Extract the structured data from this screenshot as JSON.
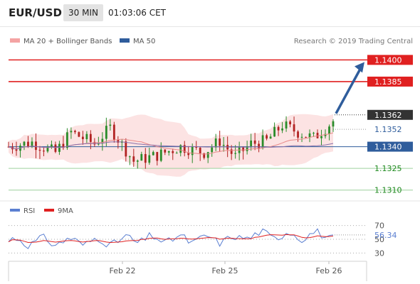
{
  "header": {
    "symbol": "EUR/USD",
    "timeframe": "30 MIN",
    "time": "01:03:06 CET"
  },
  "legend": {
    "bollinger_label": "MA 20 + Bollinger Bands",
    "bollinger_color": "#f4a3a3",
    "ma50_label": "MA 50",
    "ma50_color": "#2f5d9c",
    "source": "Research © 2019 Trading Central"
  },
  "rsi_legend": {
    "rsi_label": "RSI",
    "rsi_color": "#5b7fd1",
    "ma9_label": "9MA",
    "ma9_color": "#e02020"
  },
  "chart_data": {
    "type": "candlestick",
    "y_range": [
      1.1302,
      1.141
    ],
    "x_tick_labels": [
      "Feb 22",
      "Feb 25",
      "Feb 26"
    ],
    "levels": [
      {
        "label": "1.1400",
        "value": 1.14,
        "kind": "resistance"
      },
      {
        "label": "1.1385",
        "value": 1.1385,
        "kind": "resistance"
      },
      {
        "label": "1.1362",
        "value": 1.1362,
        "kind": "last"
      },
      {
        "label": "1.1352",
        "value": 1.1352,
        "kind": "pivot"
      },
      {
        "label": "1.1340",
        "value": 1.134,
        "kind": "pivot-line"
      },
      {
        "label": "1.1325",
        "value": 1.1325,
        "kind": "support"
      },
      {
        "label": "1.1310",
        "value": 1.131,
        "kind": "support"
      }
    ],
    "colors": {
      "up": "#2a8c2a",
      "down": "#b22222",
      "resistance": "#e02020",
      "support": "#1e8a1e",
      "pivot": "#2f5d9c",
      "last": "#333333"
    },
    "target_arrow": {
      "to_value": 1.14
    },
    "rsi": {
      "range": [
        20,
        80
      ],
      "tick_labels": [
        "70",
        "50",
        "30"
      ],
      "current_label": "56.34",
      "current_value": 56.34
    }
  }
}
